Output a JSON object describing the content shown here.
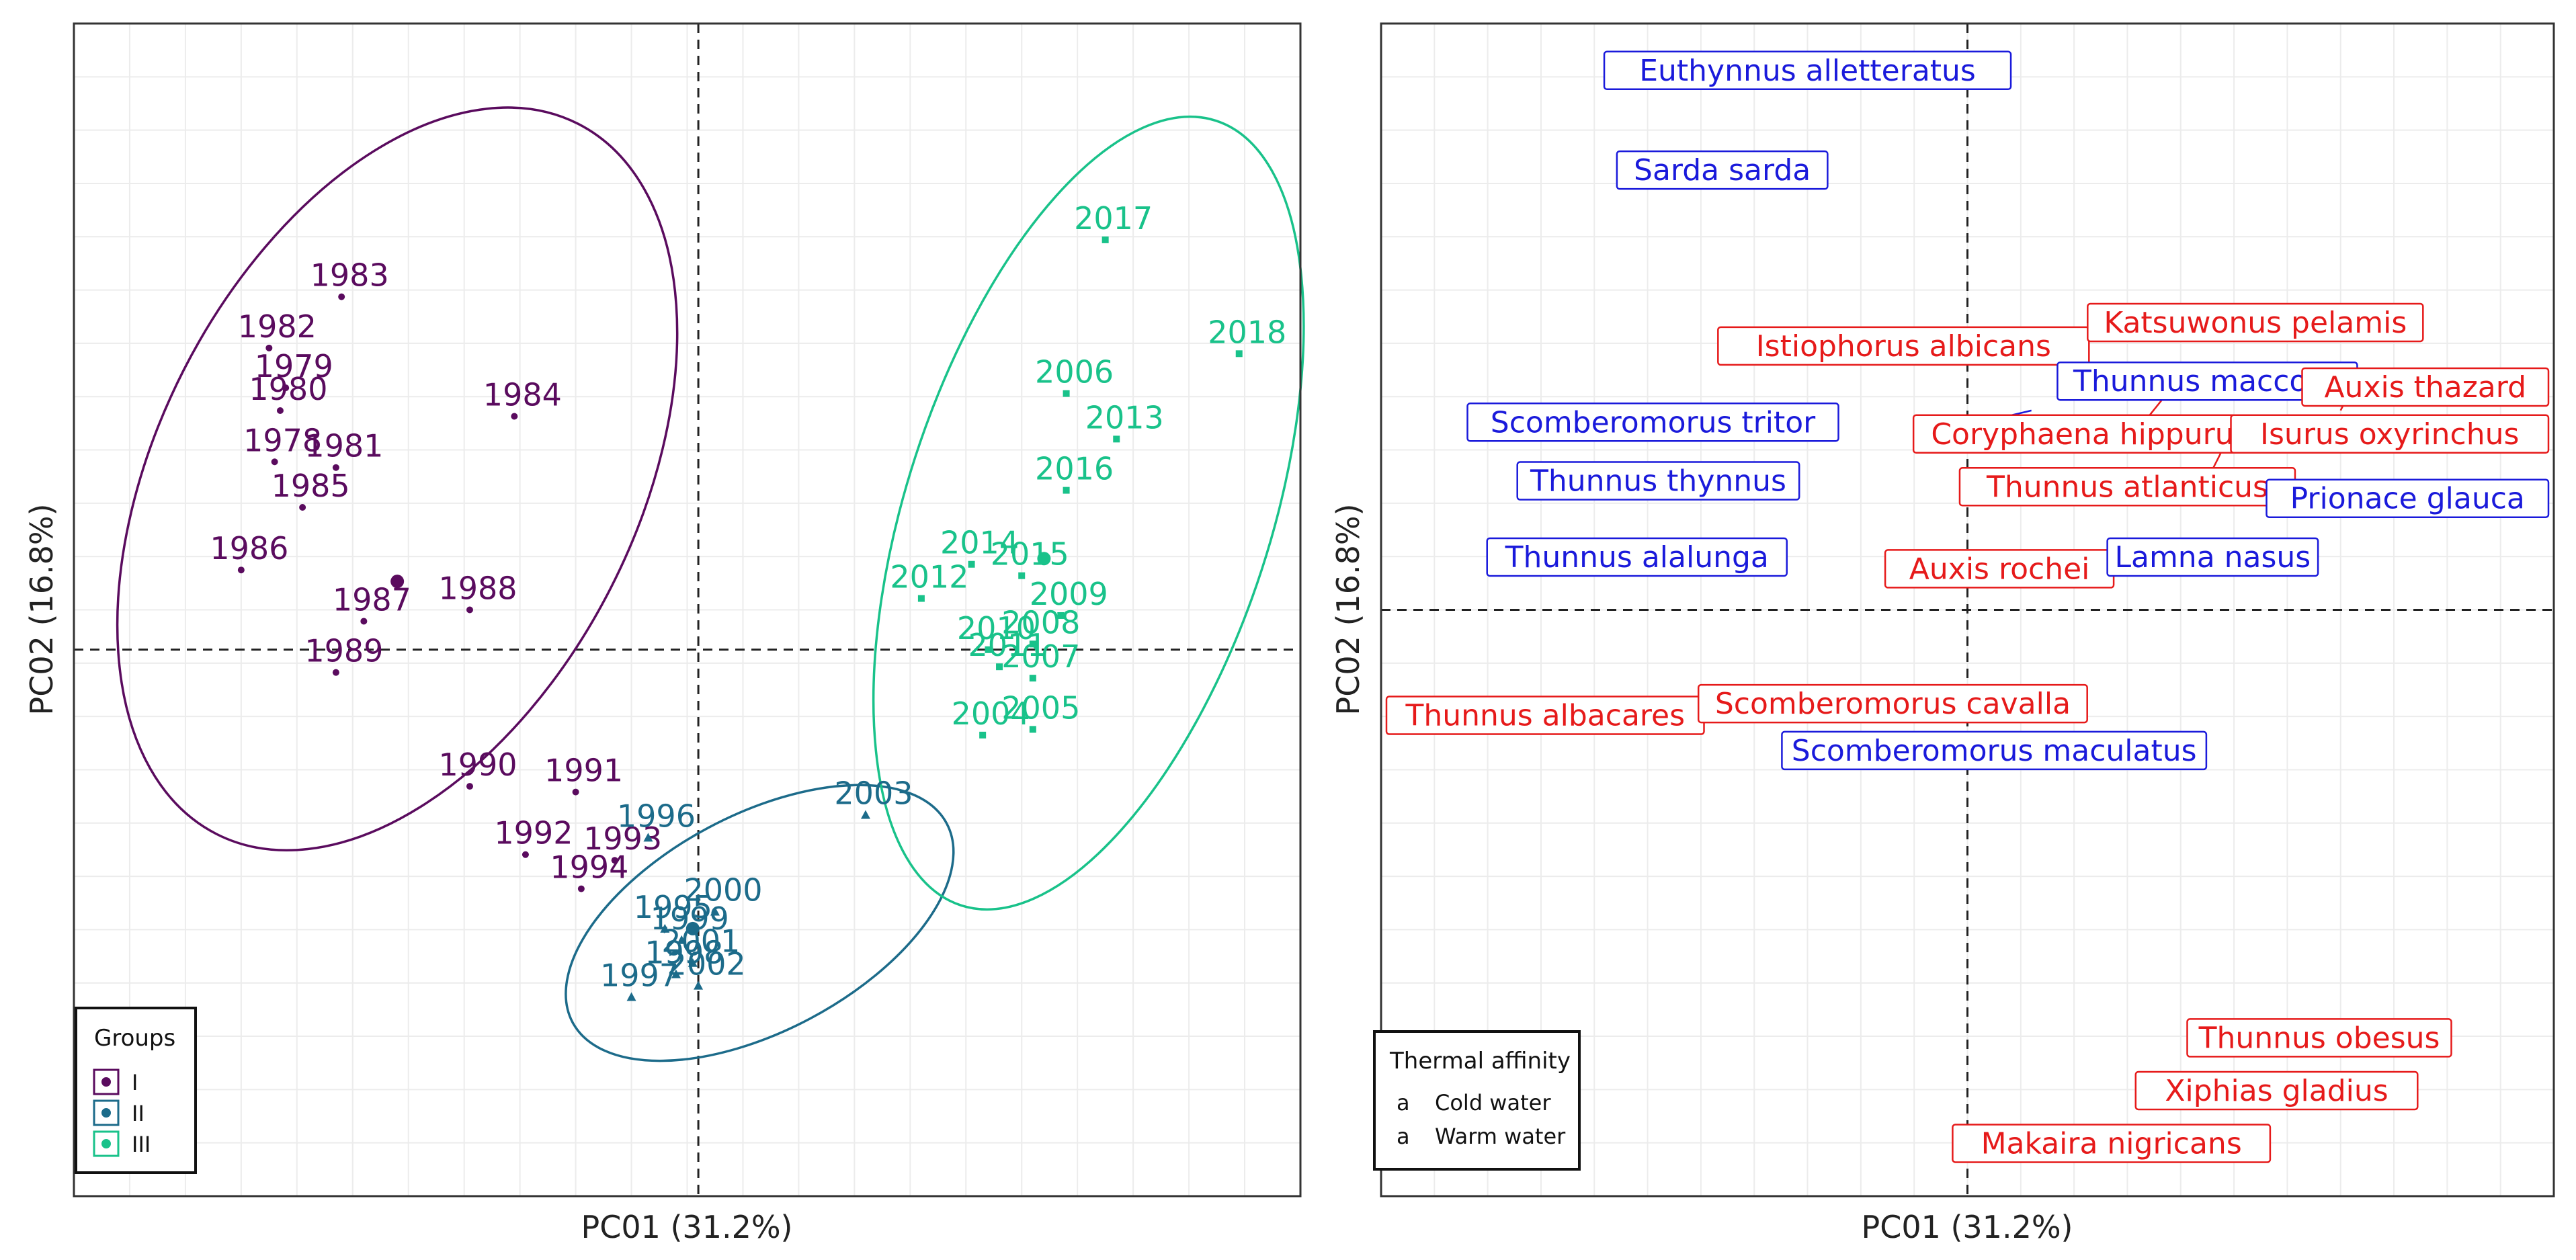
{
  "chart_data": [
    {
      "type": "scatter",
      "panel": "left",
      "xlabel": "PC01 (31.2%)",
      "ylabel": "PC02 (16.8%)",
      "xlim": [
        -5.6,
        5.4
      ],
      "ylim": [
        -4.8,
        5.5
      ],
      "grid": true,
      "reference_lines": {
        "x": 0,
        "y": 0
      },
      "legend": {
        "title": "Groups",
        "position": "bottom-left",
        "entries": [
          {
            "label": "I",
            "color": "#5a0b5e"
          },
          {
            "label": "II",
            "color": "#1c6b8a"
          },
          {
            "label": "III",
            "color": "#19c28a"
          }
        ]
      },
      "series": [
        {
          "name": "I",
          "color": "#5a0b5e",
          "marker": "circle",
          "ellipse": {
            "cx": -2.7,
            "cy": 1.5,
            "rx": 2.15,
            "ry": 3.5,
            "angle": 27
          },
          "centroid": [
            -2.7,
            0.6
          ],
          "points": [
            {
              "label": "1978",
              "x": -3.8,
              "y": 1.65
            },
            {
              "label": "1979",
              "x": -3.7,
              "y": 2.3
            },
            {
              "label": "1980",
              "x": -3.75,
              "y": 2.1
            },
            {
              "label": "1981",
              "x": -3.25,
              "y": 1.6
            },
            {
              "label": "1982",
              "x": -3.85,
              "y": 2.65
            },
            {
              "label": "1983",
              "x": -3.2,
              "y": 3.1
            },
            {
              "label": "1984",
              "x": -1.65,
              "y": 2.05
            },
            {
              "label": "1985",
              "x": -3.55,
              "y": 1.25
            },
            {
              "label": "1986",
              "x": -4.1,
              "y": 0.7
            },
            {
              "label": "1987",
              "x": -3.0,
              "y": 0.25
            },
            {
              "label": "1988",
              "x": -2.05,
              "y": 0.35
            },
            {
              "label": "1989",
              "x": -3.25,
              "y": -0.2
            },
            {
              "label": "1990",
              "x": -2.05,
              "y": -1.2
            },
            {
              "label": "1991",
              "x": -1.1,
              "y": -1.25
            },
            {
              "label": "1992",
              "x": -1.55,
              "y": -1.8
            },
            {
              "label": "1993",
              "x": -0.75,
              "y": -1.85
            },
            {
              "label": "1994",
              "x": -1.05,
              "y": -2.1
            }
          ]
        },
        {
          "name": "II",
          "color": "#1c6b8a",
          "marker": "triangle",
          "ellipse": {
            "cx": 0.55,
            "cy": -2.4,
            "rx": 1.9,
            "ry": 0.95,
            "angle": -28
          },
          "centroid": [
            -0.05,
            -2.45
          ],
          "points": [
            {
              "label": "1995",
              "x": -0.3,
              "y": -2.45
            },
            {
              "label": "1996",
              "x": -0.45,
              "y": -1.65
            },
            {
              "label": "1997",
              "x": -0.6,
              "y": -3.05
            },
            {
              "label": "1998",
              "x": -0.2,
              "y": -2.85
            },
            {
              "label": "1999",
              "x": -0.15,
              "y": -2.55
            },
            {
              "label": "2000",
              "x": 0.15,
              "y": -2.3
            },
            {
              "label": "2001",
              "x": -0.05,
              "y": -2.75
            },
            {
              "label": "2002",
              "x": 0.0,
              "y": -2.95
            },
            {
              "label": "2003",
              "x": 1.5,
              "y": -1.45
            }
          ]
        },
        {
          "name": "III",
          "color": "#19c28a",
          "marker": "square",
          "ellipse": {
            "cx": 3.5,
            "cy": 1.2,
            "rx": 3.7,
            "ry": 1.6,
            "angle": -72
          },
          "centroid": [
            3.1,
            0.8
          ],
          "points": [
            {
              "label": "2004",
              "x": 2.55,
              "y": -0.75
            },
            {
              "label": "2005",
              "x": 3.0,
              "y": -0.7
            },
            {
              "label": "2006",
              "x": 3.3,
              "y": 2.25
            },
            {
              "label": "2007",
              "x": 3.0,
              "y": -0.25
            },
            {
              "label": "2008",
              "x": 3.0,
              "y": 0.05
            },
            {
              "label": "2009",
              "x": 3.25,
              "y": 0.3
            },
            {
              "label": "2010",
              "x": 2.6,
              "y": 0.0
            },
            {
              "label": "2011",
              "x": 2.7,
              "y": -0.15
            },
            {
              "label": "2012",
              "x": 2.0,
              "y": 0.45
            },
            {
              "label": "2013",
              "x": 3.75,
              "y": 1.85
            },
            {
              "label": "2014",
              "x": 2.45,
              "y": 0.75
            },
            {
              "label": "2015",
              "x": 2.9,
              "y": 0.65
            },
            {
              "label": "2016",
              "x": 3.3,
              "y": 1.4
            },
            {
              "label": "2017",
              "x": 3.65,
              "y": 3.6
            },
            {
              "label": "2018",
              "x": 4.85,
              "y": 2.6
            }
          ]
        }
      ]
    },
    {
      "type": "scatter",
      "panel": "right",
      "xlabel": "PC01 (31.2%)",
      "ylabel": "PC02 (16.8%)",
      "xlim": [
        -5.5,
        5.5
      ],
      "ylim": [
        -5.0,
        5.0
      ],
      "grid": true,
      "reference_lines": {
        "x": 0,
        "y": 0
      },
      "legend": {
        "title": "Thermal affinity",
        "position": "bottom-left",
        "entries": [
          {
            "key": "a",
            "label": "Cold water",
            "color": "#1a1adb"
          },
          {
            "key": "a",
            "label": "Warm water",
            "color": "#e61a1a"
          }
        ]
      },
      "points": [
        {
          "label": "Euthynnus alletteratus",
          "x": -1.5,
          "y": 4.6,
          "affinity": "Cold water"
        },
        {
          "label": "Sarda sarda",
          "x": -2.3,
          "y": 3.75,
          "affinity": "Cold water"
        },
        {
          "label": "Istiophorus albicans",
          "x": -0.6,
          "y": 2.25,
          "affinity": "Warm water"
        },
        {
          "label": "Katsuwonus pelamis",
          "x": 2.7,
          "y": 2.45,
          "affinity": "Warm water"
        },
        {
          "label": "Thunnus maccoyii",
          "x": 2.25,
          "y": 1.95,
          "affinity": "Cold water"
        },
        {
          "label": "Auxis thazard",
          "x": 4.6,
          "y": 1.9,
          "affinity": "Warm water"
        },
        {
          "label": "Scomberomorus tritor",
          "x": -2.95,
          "y": 1.6,
          "affinity": "Cold water"
        },
        {
          "label": "Coryphaena hippurus",
          "x": 1.15,
          "y": 1.5,
          "affinity": "Warm water"
        },
        {
          "label": "Isurus oxyrinchus",
          "x": 4.6,
          "y": 1.5,
          "affinity": "Warm water"
        },
        {
          "label": "Thunnus thynnus",
          "x": -2.9,
          "y": 1.1,
          "affinity": "Cold water"
        },
        {
          "label": "Thunnus atlanticus",
          "x": 1.5,
          "y": 1.05,
          "affinity": "Warm water"
        },
        {
          "label": "Prionace glauca",
          "x": 4.7,
          "y": 0.95,
          "affinity": "Cold water"
        },
        {
          "label": "Thunnus alalunga",
          "x": -3.1,
          "y": 0.45,
          "affinity": "Cold water"
        },
        {
          "label": "Auxis rochei",
          "x": 0.3,
          "y": 0.35,
          "affinity": "Warm water"
        },
        {
          "label": "Lamna nasus",
          "x": 2.3,
          "y": 0.45,
          "affinity": "Cold water"
        },
        {
          "label": "Thunnus albacares",
          "x": -4.1,
          "y": -0.9,
          "affinity": "Warm water"
        },
        {
          "label": "Scomberomorus cavalla",
          "x": -0.7,
          "y": -0.8,
          "affinity": "Warm water"
        },
        {
          "label": "Scomberomorus maculatus",
          "x": 0.25,
          "y": -1.2,
          "affinity": "Cold water"
        },
        {
          "label": "Thunnus obesus",
          "x": 3.3,
          "y": -3.65,
          "affinity": "Warm water"
        },
        {
          "label": "Xiphias gladius",
          "x": 2.9,
          "y": -4.1,
          "affinity": "Warm water"
        },
        {
          "label": "Makaira nigricans",
          "x": 1.35,
          "y": -4.55,
          "affinity": "Warm water"
        }
      ]
    }
  ]
}
